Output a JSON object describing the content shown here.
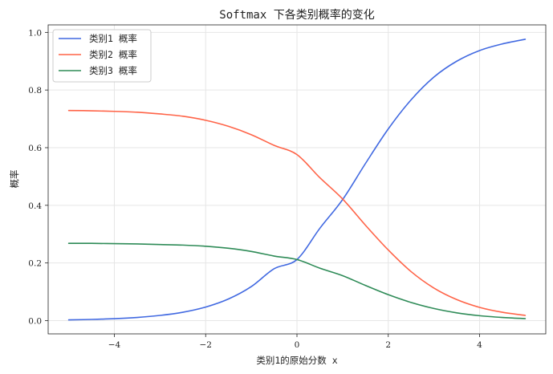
{
  "chart_data": {
    "type": "line",
    "title": "Softmax 下各类别概率的变化",
    "xlabel": "类别1的原始分数 x",
    "ylabel": "概率",
    "xlim": [
      -5.45,
      5.45
    ],
    "ylim": [
      -0.046,
      1.026
    ],
    "xticks": [
      -4,
      -2,
      0,
      2,
      4
    ],
    "yticks": [
      0.0,
      0.2,
      0.4,
      0.6,
      0.8,
      1.0
    ],
    "xtick_labels": [
      "−4",
      "−2",
      "0",
      "2",
      "4"
    ],
    "ytick_labels": [
      "0.0",
      "0.2",
      "0.4",
      "0.6",
      "0.8",
      "1.0"
    ],
    "grid": true,
    "legend_position": "top-left",
    "x": [
      -5,
      -4.5,
      -4,
      -3.5,
      -3,
      -2.5,
      -2,
      -1.5,
      -1,
      -0.5,
      0,
      0.5,
      1,
      1.5,
      2,
      2.5,
      3,
      3.5,
      4,
      4.5,
      5
    ],
    "series": [
      {
        "name": "类别1 概率",
        "color": "#4169e1",
        "values": [
          0.0025,
          0.0041,
          0.0067,
          0.011,
          0.018,
          0.029,
          0.047,
          0.075,
          0.118,
          0.18,
          0.212,
          0.32,
          0.42,
          0.545,
          0.665,
          0.766,
          0.845,
          0.9,
          0.937,
          0.96,
          0.976
        ]
      },
      {
        "name": "类别2 概率",
        "color": "#ff6347",
        "values": [
          0.729,
          0.728,
          0.726,
          0.723,
          0.717,
          0.709,
          0.695,
          0.674,
          0.645,
          0.608,
          0.576,
          0.496,
          0.422,
          0.331,
          0.245,
          0.17,
          0.113,
          0.073,
          0.046,
          0.029,
          0.018
        ]
      },
      {
        "name": "类别3 概率",
        "color": "#2e8b57",
        "values": [
          0.268,
          0.268,
          0.267,
          0.266,
          0.264,
          0.262,
          0.258,
          0.251,
          0.24,
          0.224,
          0.212,
          0.182,
          0.156,
          0.122,
          0.09,
          0.063,
          0.042,
          0.027,
          0.017,
          0.011,
          0.007
        ]
      }
    ]
  }
}
